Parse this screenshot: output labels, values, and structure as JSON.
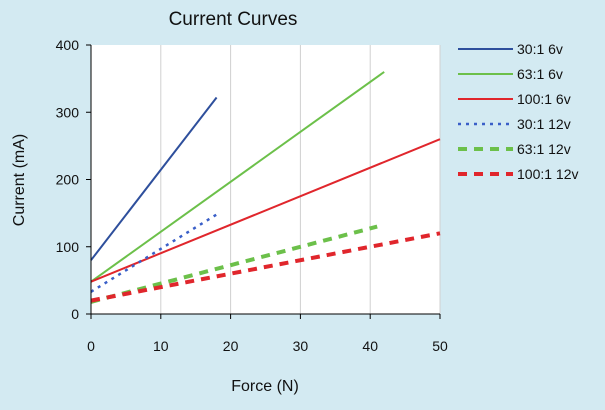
{
  "chart_data": {
    "type": "line",
    "title": "Current Curves",
    "xlabel": "Force (N)",
    "ylabel": "Current (mA)",
    "xlim": [
      0,
      50
    ],
    "ylim": [
      0,
      400
    ],
    "xticks": [
      0,
      10,
      20,
      30,
      40,
      50
    ],
    "yticks": [
      0,
      100,
      200,
      300,
      400
    ],
    "grid": "vertical",
    "legend": "right",
    "series": [
      {
        "name": "30:1 6v",
        "color": "#2e4f9c",
        "style": "solid",
        "x": [
          0,
          18
        ],
        "y": [
          80,
          322
        ]
      },
      {
        "name": "63:1 6v",
        "color": "#6cc04a",
        "style": "solid",
        "x": [
          0,
          42
        ],
        "y": [
          48,
          360
        ]
      },
      {
        "name": "100:1 6v",
        "color": "#e0262c",
        "style": "solid",
        "x": [
          0,
          50
        ],
        "y": [
          48,
          260
        ]
      },
      {
        "name": "30:1 12v",
        "color": "#3a5fc8",
        "style": "dotted",
        "x": [
          0,
          18
        ],
        "y": [
          33,
          148
        ]
      },
      {
        "name": "63:1 12v",
        "color": "#6cc04a",
        "style": "dashed",
        "x": [
          0,
          41
        ],
        "y": [
          18,
          130
        ]
      },
      {
        "name": "100:1 12v",
        "color": "#e0262c",
        "style": "dashed",
        "x": [
          0,
          50
        ],
        "y": [
          20,
          120
        ]
      }
    ]
  }
}
